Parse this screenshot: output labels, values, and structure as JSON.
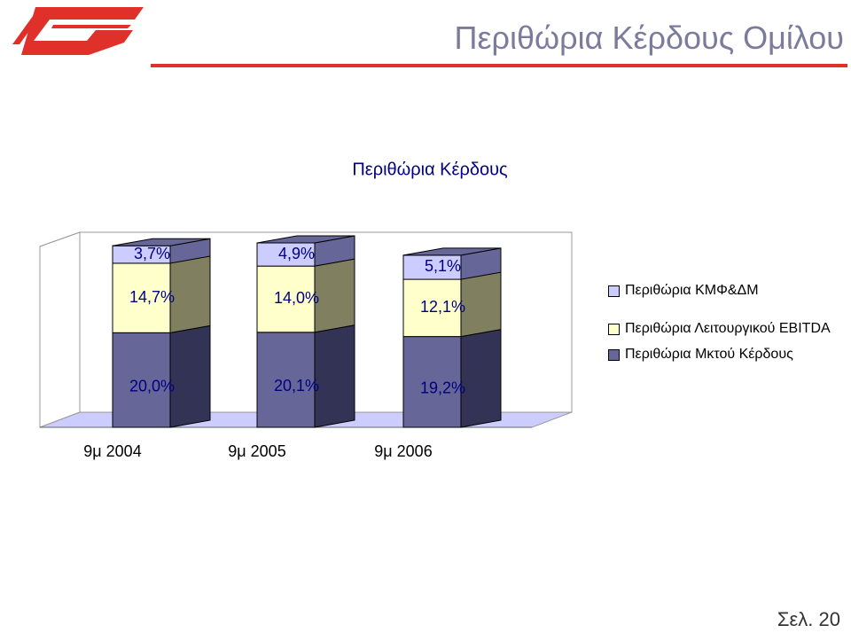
{
  "header": {
    "title": "Περιθώρια Κέρδους Ομίλου"
  },
  "chart_data": {
    "type": "bar3d_stacked",
    "title": "Περιθώρια Κέρδους",
    "categories": [
      "9μ 2004",
      "9μ 2005",
      "9μ 2006"
    ],
    "series": [
      {
        "name": "Περιθώρια Μκτού Κέρδους",
        "color": "#666699",
        "side_color": "#333355",
        "values": [
          20.0,
          20.1,
          19.2
        ],
        "value_labels": [
          "20,0%",
          "20,1%",
          "19,2%"
        ]
      },
      {
        "name": "Περιθώρια Λειτουργικού EBITDA",
        "color": "#ffffcc",
        "side_color": "#808060",
        "values": [
          14.7,
          14.0,
          12.1
        ],
        "value_labels": [
          "14,7%",
          "14,0%",
          "12,1%"
        ]
      },
      {
        "name": "Περιθώρια ΚΜΦ&ΔΜ",
        "color": "#ccccff",
        "side_color": "#666699",
        "values": [
          3.7,
          4.9,
          5.1
        ],
        "value_labels": [
          "3,7%",
          "4,9%",
          "5,1%"
        ]
      }
    ]
  },
  "footer": {
    "page": "Σελ. 20"
  }
}
